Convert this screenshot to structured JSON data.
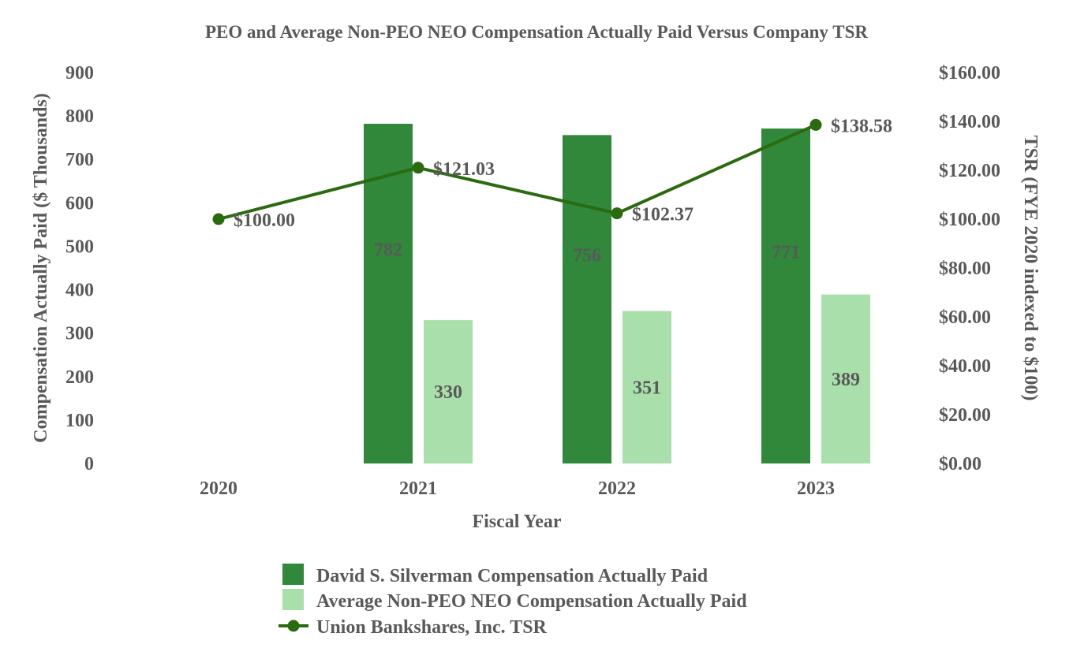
{
  "chart_data": {
    "type": "bar",
    "title": "PEO and Average Non-PEO NEO Compensation Actually Paid Versus Company TSR",
    "categories": [
      "2020",
      "2021",
      "2022",
      "2023"
    ],
    "xlabel": "Fiscal Year",
    "ylabel": "Compensation Actually Paid ($ Thousands)",
    "y2label": "TSR (FYE 2020 indexed to $100)",
    "ylim": [
      0,
      900
    ],
    "y_ticks": [
      "0",
      "100",
      "200",
      "300",
      "400",
      "500",
      "600",
      "700",
      "800",
      "900"
    ],
    "y2lim": [
      0,
      160
    ],
    "y2_ticks": [
      "$0.00",
      "$20.00",
      "$40.00",
      "$60.00",
      "$80.00",
      "$100.00",
      "$120.00",
      "$140.00",
      "$160.00"
    ],
    "series": [
      {
        "name": "David S. Silverman Compensation Actually Paid",
        "type": "bar",
        "axis": "left",
        "color": "#31873a",
        "values": [
          null,
          782,
          756,
          771
        ],
        "labels": [
          "",
          "782",
          "756",
          "771"
        ]
      },
      {
        "name": "Average Non-PEO NEO Compensation Actually Paid",
        "type": "bar",
        "axis": "left",
        "color": "#a9dfab",
        "values": [
          null,
          330,
          351,
          389
        ],
        "labels": [
          "",
          "330",
          "351",
          "389"
        ]
      },
      {
        "name": "Union Bankshares, Inc. TSR",
        "type": "line",
        "axis": "right",
        "color": "#2a6b0f",
        "values": [
          100.0,
          121.03,
          102.37,
          138.58
        ],
        "labels": [
          "$100.00",
          "$121.03",
          "$102.37",
          "$138.58"
        ]
      }
    ],
    "legend_position": "bottom"
  }
}
